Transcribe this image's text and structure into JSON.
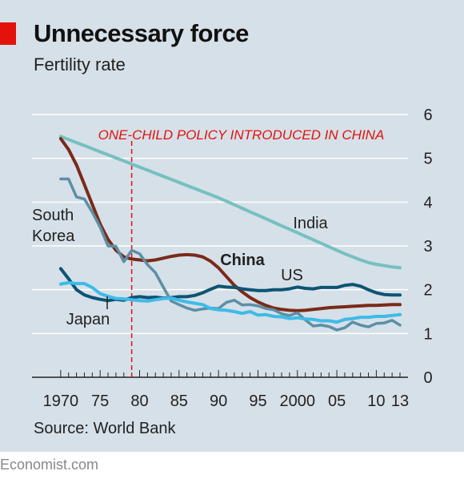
{
  "title": "Unnecessary force",
  "subtitle": "Fertility rate",
  "source": "Source: World Bank",
  "credit": "Economist.com",
  "chart_data": {
    "type": "line",
    "title": "Unnecessary force",
    "subtitle": "Fertility rate",
    "xlim": [
      1969,
      2013
    ],
    "ylim": [
      0,
      6
    ],
    "y_ticks": [
      0,
      1,
      2,
      3,
      4,
      5,
      6
    ],
    "y_tick_labels": [
      "0",
      "1",
      "2",
      "3",
      "4",
      "5",
      "6"
    ],
    "x_tick_labels": [
      {
        "year": 1970,
        "label": "1970"
      },
      {
        "year": 1975,
        "label": "75"
      },
      {
        "year": 1980,
        "label": "80"
      },
      {
        "year": 1985,
        "label": "85"
      },
      {
        "year": 1990,
        "label": "90"
      },
      {
        "year": 1995,
        "label": "95"
      },
      {
        "year": 2000,
        "label": "2000"
      },
      {
        "year": 2005,
        "label": "05"
      },
      {
        "year": 2010,
        "label": "10"
      },
      {
        "year": 2013,
        "label": "13"
      }
    ],
    "grid": "horizontal",
    "annotation": {
      "year": 1979,
      "text": "ONE-CHILD POLICY INTRODUCED IN CHINA",
      "color": "#e3120b"
    },
    "x": [
      1970,
      1971,
      1972,
      1973,
      1974,
      1975,
      1976,
      1977,
      1978,
      1979,
      1980,
      1981,
      1982,
      1983,
      1984,
      1985,
      1986,
      1987,
      1988,
      1989,
      1990,
      1991,
      1992,
      1993,
      1994,
      1995,
      1996,
      1997,
      1998,
      1999,
      2000,
      2001,
      2002,
      2003,
      2004,
      2005,
      2006,
      2007,
      2008,
      2009,
      2010,
      2011,
      2012,
      2013
    ],
    "series": [
      {
        "name": "India",
        "color": "#76c0c1",
        "width": 4,
        "values": [
          5.5,
          5.43,
          5.36,
          5.29,
          5.22,
          5.15,
          5.08,
          5.01,
          4.94,
          4.87,
          4.8,
          4.73,
          4.66,
          4.59,
          4.52,
          4.45,
          4.38,
          4.31,
          4.24,
          4.17,
          4.1,
          4.02,
          3.94,
          3.86,
          3.78,
          3.7,
          3.62,
          3.54,
          3.46,
          3.38,
          3.3,
          3.22,
          3.14,
          3.06,
          2.98,
          2.9,
          2.82,
          2.75,
          2.68,
          2.62,
          2.58,
          2.55,
          2.52,
          2.5
        ]
      },
      {
        "name": "China",
        "color": "#7a2a18",
        "width": 4,
        "values": [
          5.45,
          5.2,
          4.85,
          4.4,
          3.95,
          3.5,
          3.15,
          2.9,
          2.75,
          2.7,
          2.68,
          2.66,
          2.68,
          2.72,
          2.76,
          2.79,
          2.8,
          2.79,
          2.75,
          2.65,
          2.5,
          2.3,
          2.1,
          1.95,
          1.82,
          1.72,
          1.64,
          1.58,
          1.55,
          1.53,
          1.52,
          1.53,
          1.55,
          1.57,
          1.59,
          1.6,
          1.61,
          1.62,
          1.63,
          1.64,
          1.64,
          1.65,
          1.66,
          1.66
        ]
      },
      {
        "name": "US",
        "color": "#0d5473",
        "width": 4,
        "values": [
          2.48,
          2.25,
          2.0,
          1.88,
          1.82,
          1.78,
          1.75,
          1.78,
          1.76,
          1.82,
          1.84,
          1.82,
          1.83,
          1.81,
          1.82,
          1.84,
          1.84,
          1.87,
          1.93,
          2.01,
          2.08,
          2.06,
          2.05,
          2.02,
          2.0,
          1.98,
          1.98,
          2.0,
          2.0,
          2.02,
          2.06,
          2.03,
          2.02,
          2.05,
          2.05,
          2.05,
          2.1,
          2.12,
          2.08,
          2.0,
          1.93,
          1.89,
          1.88,
          1.88
        ]
      },
      {
        "name": "South Korea",
        "color": "#5c8fa6",
        "width": 3.5,
        "values": [
          4.53,
          4.53,
          4.12,
          4.07,
          3.77,
          3.43,
          3.0,
          2.99,
          2.64,
          2.9,
          2.82,
          2.57,
          2.39,
          2.06,
          1.74,
          1.66,
          1.58,
          1.53,
          1.56,
          1.58,
          1.57,
          1.71,
          1.76,
          1.65,
          1.66,
          1.63,
          1.57,
          1.54,
          1.45,
          1.41,
          1.47,
          1.31,
          1.17,
          1.19,
          1.16,
          1.08,
          1.13,
          1.26,
          1.19,
          1.15,
          1.23,
          1.24,
          1.3,
          1.19
        ]
      },
      {
        "name": "Japan",
        "color": "#3ebbe8",
        "width": 4,
        "values": [
          2.13,
          2.16,
          2.14,
          2.14,
          2.05,
          1.91,
          1.85,
          1.8,
          1.79,
          1.77,
          1.75,
          1.74,
          1.77,
          1.8,
          1.81,
          1.76,
          1.72,
          1.69,
          1.66,
          1.57,
          1.54,
          1.53,
          1.5,
          1.46,
          1.5,
          1.42,
          1.43,
          1.39,
          1.38,
          1.34,
          1.36,
          1.33,
          1.32,
          1.29,
          1.29,
          1.26,
          1.32,
          1.34,
          1.37,
          1.37,
          1.39,
          1.39,
          1.41,
          1.43
        ]
      }
    ],
    "series_labels": [
      {
        "series": "South Korea",
        "lines": [
          "South",
          "Korea"
        ]
      },
      {
        "series": "India",
        "lines": [
          "India"
        ]
      },
      {
        "series": "China",
        "lines": [
          "China"
        ]
      },
      {
        "series": "US",
        "lines": [
          "US"
        ]
      },
      {
        "series": "Japan",
        "lines": [
          "Japan"
        ]
      }
    ]
  }
}
